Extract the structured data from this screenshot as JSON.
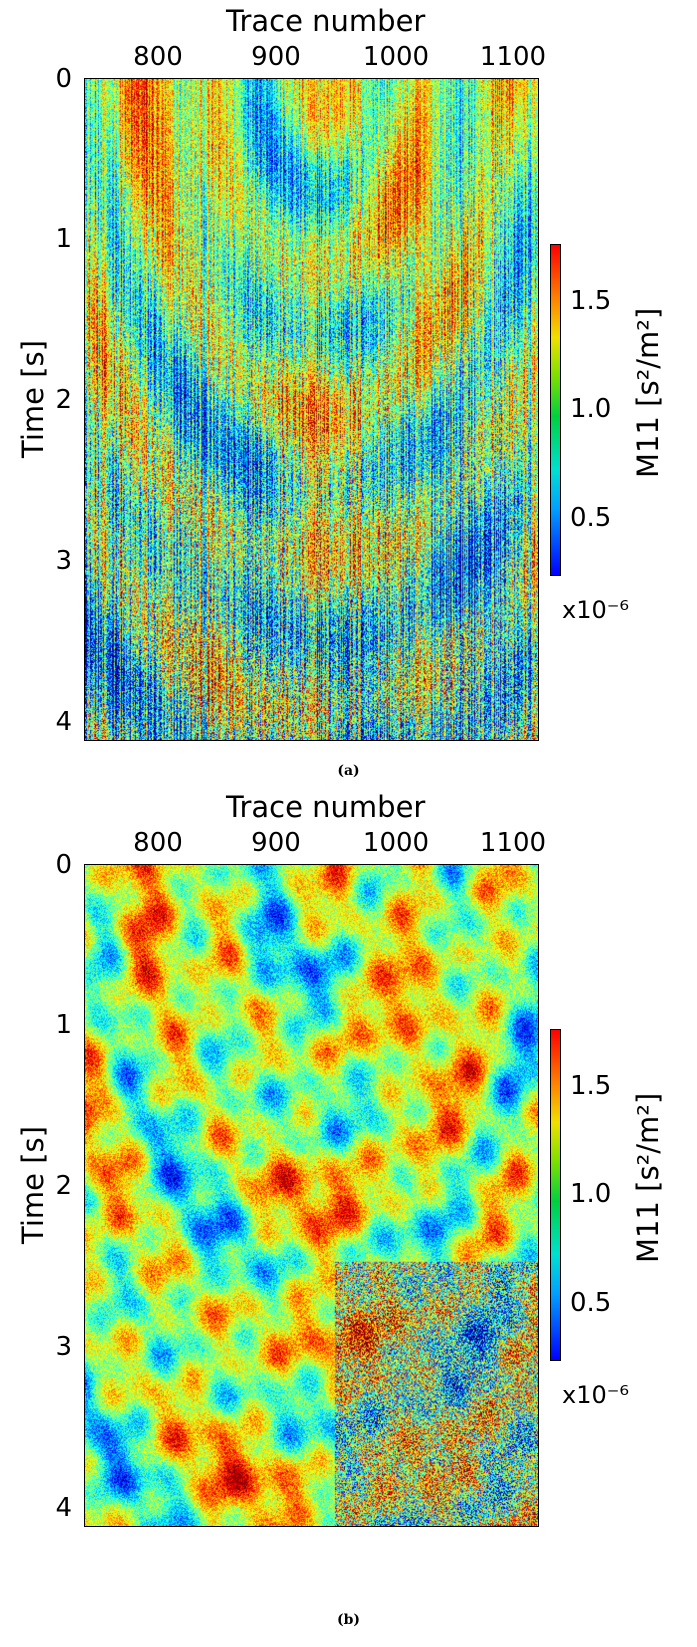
{
  "chart_data": [
    {
      "type": "heatmap",
      "caption": "(a)",
      "xlabel": "Trace number",
      "ylabel": "Time [s]",
      "x_ticks": [
        "800",
        "900",
        "1000",
        "1100"
      ],
      "y_ticks": [
        "0",
        "1",
        "2",
        "3",
        "4"
      ],
      "xlim": [
        745,
        1125
      ],
      "ylim": [
        4.1,
        0
      ],
      "colorbar": {
        "label": "M11 [s²/m²]",
        "ticks": [
          "0.5",
          "1.0",
          "1.5"
        ],
        "range": [
          0.25,
          1.75
        ],
        "multiplier": "x10⁻⁶",
        "colormap": "jet"
      },
      "texture": "noisy"
    },
    {
      "type": "heatmap",
      "caption": "(b)",
      "xlabel": "Trace number",
      "ylabel": "Time [s]",
      "x_ticks": [
        "800",
        "900",
        "1000",
        "1100"
      ],
      "y_ticks": [
        "0",
        "1",
        "2",
        "3",
        "4"
      ],
      "xlim": [
        745,
        1125
      ],
      "ylim": [
        4.1,
        0
      ],
      "colorbar": {
        "label": "M11 [s²/m²]",
        "ticks": [
          "0.5",
          "1.0",
          "1.5"
        ],
        "range": [
          0.25,
          1.75
        ],
        "multiplier": "x10⁻⁶",
        "colormap": "jet"
      },
      "texture": "smooth"
    }
  ]
}
